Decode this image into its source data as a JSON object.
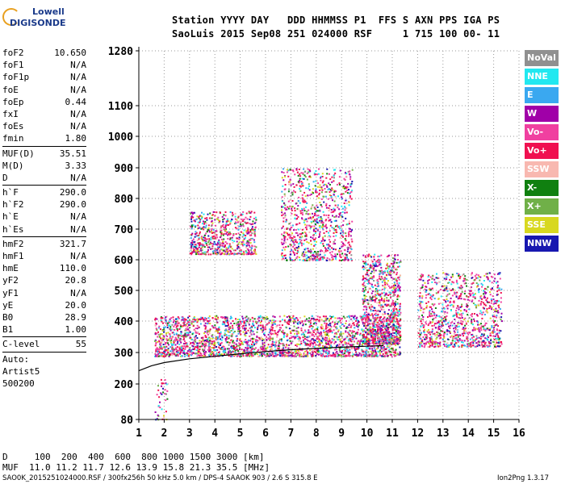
{
  "logo": {
    "line1": "Lowell",
    "line2": "DIGISONDE"
  },
  "header": {
    "row1": "Station YYYY DAY   DDD HHMMSS P1  FFS S AXN PPS IGA PS",
    "row2": "SaoLuis 2015 Sep08 251 024000 RSF     1 715 100 00- 11"
  },
  "params": {
    "groups": [
      [
        [
          "foF2",
          "10.650"
        ],
        [
          "foF1",
          "N/A"
        ],
        [
          "foF1p",
          "N/A"
        ],
        [
          "foE",
          "N/A"
        ],
        [
          "foEp",
          "0.44"
        ],
        [
          "fxI",
          "N/A"
        ],
        [
          "foEs",
          "N/A"
        ],
        [
          "fmin",
          "1.80"
        ]
      ],
      [
        [
          "MUF(D)",
          "35.51"
        ],
        [
          "M(D)",
          "3.33"
        ],
        [
          "D",
          "N/A"
        ]
      ],
      [
        [
          "h`F",
          "290.0"
        ],
        [
          "h`F2",
          "290.0"
        ],
        [
          "h`E",
          "N/A"
        ],
        [
          "h`Es",
          "N/A"
        ]
      ],
      [
        [
          "hmF2",
          "321.7"
        ],
        [
          "hmF1",
          "N/A"
        ],
        [
          "hmE",
          "110.0"
        ],
        [
          "yF2",
          "20.8"
        ],
        [
          "yF1",
          "N/A"
        ],
        [
          "yE",
          "20.0"
        ],
        [
          "B0",
          "28.9"
        ],
        [
          "B1",
          "1.00"
        ]
      ],
      [
        [
          "C-level",
          "55"
        ]
      ],
      [
        [
          "Auto:",
          ""
        ],
        [
          "Artist5",
          ""
        ],
        [
          "500200",
          ""
        ]
      ]
    ]
  },
  "legend": [
    {
      "label": "NoVal",
      "color": "#909090"
    },
    {
      "label": "NNE",
      "color": "#22e8f0"
    },
    {
      "label": "E",
      "color": "#3aa8f0"
    },
    {
      "label": "W",
      "color": "#a000a8"
    },
    {
      "label": "Vo-",
      "color": "#f040a0"
    },
    {
      "label": "Vo+",
      "color": "#f01050"
    },
    {
      "label": "SSW",
      "color": "#f8b8b0"
    },
    {
      "label": "X-",
      "color": "#108010"
    },
    {
      "label": "X+",
      "color": "#70b048"
    },
    {
      "label": "SSE",
      "color": "#d8d820"
    },
    {
      "label": "NNW",
      "color": "#1818b0"
    }
  ],
  "footer": {
    "row1": "D     100  200  400  600  800 1000 1500 3000 [km]",
    "row2": "MUF  11.0 11.2 11.7 12.6 13.9 15.8 21.3 35.5 [MHz]",
    "file": "SAO0K_2015251024000.RSF / 300fx256h 50 kHz 5.0 km / DPS-4 SAAOK 903 / 2.6 S 315.8 E",
    "version": "Ion2Png 1.3.17"
  },
  "chart_data": {
    "type": "scatter",
    "title": "",
    "xlabel": "",
    "ylabel": "",
    "xlim": [
      1,
      16
    ],
    "ylim": [
      80,
      1280
    ],
    "yscale": "virtual-height (non-linear)",
    "xticks": [
      1,
      2,
      3,
      4,
      5,
      6,
      7,
      8,
      9,
      10,
      11,
      12,
      13,
      14,
      15,
      16
    ],
    "yticks": [
      80,
      200,
      300,
      400,
      500,
      600,
      700,
      800,
      900,
      1000,
      1100,
      1280
    ],
    "grid": "dotted",
    "legend": "right",
    "series": [
      {
        "color": "black",
        "points": [
          [
            1,
            242
          ],
          [
            1.5,
            258
          ],
          [
            2,
            268
          ],
          [
            3,
            280
          ],
          [
            4,
            288
          ],
          [
            5,
            296
          ],
          [
            6,
            303
          ],
          [
            7,
            309
          ],
          [
            8,
            313
          ],
          [
            9,
            317
          ],
          [
            10,
            320
          ],
          [
            10.65,
            322
          ]
        ]
      }
    ],
    "clusters": [
      {
        "x": [
          1.6,
          11.3
        ],
        "y": [
          290,
          420
        ]
      },
      {
        "x": [
          3.0,
          5.6
        ],
        "y": [
          620,
          760
        ]
      },
      {
        "x": [
          6.6,
          9.4
        ],
        "y": [
          600,
          900
        ]
      },
      {
        "x": [
          9.8,
          11.3
        ],
        "y": [
          330,
          620
        ]
      },
      {
        "x": [
          12.0,
          15.3
        ],
        "y": [
          320,
          560
        ]
      },
      {
        "x": [
          1.6,
          2.1
        ],
        "y": [
          80,
          220
        ]
      }
    ]
  }
}
